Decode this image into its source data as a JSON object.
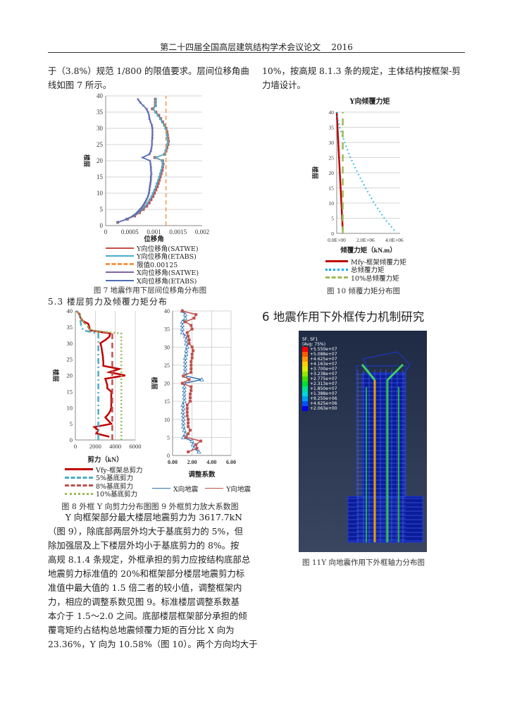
{
  "header": {
    "title": "第二十四届全国高层建筑结构学术会议论文",
    "year": "2016"
  },
  "left_text_top": [
    "于（3.8%）规范 1/800 的限值要求。层间位移角曲",
    "线如图 7 所示。"
  ],
  "right_text_top": [
    "10%，按高规 8.1.3 条的规定，主体结构按框架-剪",
    "力墙设计。"
  ],
  "section_5_3": "5.3 楼层剪力及倾覆力矩分布",
  "section_6": "6 地震作用下外框传力机制研究",
  "fig7_caption": "图 7 地震作用下层间位移角分布图",
  "fig8_9_caption": "图 8 外框 Y 向剪力分布图图 9 外框剪力放大系数图",
  "fig10_caption": "图 10 倾覆力矩分布图",
  "fig11_caption": "图 11Y 向地震作用下外框轴力分布图",
  "body_text": [
    "Y 向框架部分最大楼层地震剪力为 3617.7kN",
    "（图 9），除底部两层外均大于基底剪力的 5%，但",
    "除加强层及上下楼层外均小于基底剪力的 8%。按",
    "高规 8.1.4 条规定，外框承担的剪力应按结构底部总",
    "地震剪力标准值的 20%和框架部分楼层地震剪力标",
    "准值中最大值的 1.5 倍二者的较小值，调整框架内",
    "力，相应的调整系数见图 9。标准楼层调整系数基",
    "本介于 1.5～2.0 之间。底部楼层框架部分承担的倾",
    "覆弯矩约占结构总地震倾覆力矩的百分比 X 向为",
    "23.36%，Y 向为 10.58%（图 10）。两个方向均大于"
  ],
  "fig11": {
    "title": "SF, SF1",
    "subtitle": "(Avg: 75%)",
    "legend": [
      "+5.550e+07",
      "+5.088e+07",
      "+4.625e+07",
      "+4.163e+07",
      "+3.700e+07",
      "+3.238e+07",
      "+2.775e+07",
      "+2.313e+07",
      "+1.850e+07",
      "+1.388e+07",
      "+9.250e+06",
      "+4.625e+06",
      "+2.063e+00"
    ],
    "colors": [
      "#ff0000",
      "#ff5a00",
      "#ff9a00",
      "#ffd000",
      "#d8f000",
      "#90e800",
      "#40e000",
      "#00e030",
      "#00e090",
      "#00d8d8",
      "#00a0f0",
      "#0050ff",
      "#0000e0"
    ]
  },
  "chart_data": [
    {
      "id": "fig7",
      "type": "line",
      "xlabel": "位移角",
      "ylabel": "楼层",
      "xlim": [
        0,
        0.002
      ],
      "ylim": [
        0,
        40
      ],
      "xticks": [
        0,
        0.0005,
        0.001,
        0.0015,
        0.002
      ],
      "xtick_labels": [
        "0",
        "0.0005",
        "0.001",
        "0.0015",
        "0.002"
      ],
      "yticks": [
        0,
        5,
        10,
        15,
        20,
        25,
        30,
        35,
        40
      ],
      "ytick_labels": [
        "0",
        "5",
        "10",
        "15",
        "20",
        "25",
        "30",
        "35",
        "40"
      ],
      "grid": "horizontal",
      "series": [
        {
          "name": "Y向位移角(SATWE)",
          "color": "#c0504d",
          "marker": "square",
          "dash": "",
          "y": [
            1,
            2,
            3,
            4,
            5,
            6,
            7,
            8,
            9,
            10,
            11,
            12,
            13,
            14,
            15,
            16,
            17,
            18,
            19,
            20,
            21,
            22,
            23,
            24,
            25,
            26,
            27,
            28,
            29,
            30,
            31,
            32,
            33,
            34,
            35,
            36,
            37,
            38,
            39
          ],
          "x": [
            0.00025,
            0.00045,
            0.0006,
            0.0007,
            0.00078,
            0.00085,
            0.0009,
            0.00094,
            0.00098,
            0.00101,
            0.00104,
            0.00107,
            0.00109,
            0.00111,
            0.00113,
            0.00115,
            0.00117,
            0.00118,
            0.00119,
            0.00118,
            0.00102,
            0.00122,
            0.00125,
            0.00127,
            0.00129,
            0.0013,
            0.00129,
            0.00128,
            0.00127,
            0.00125,
            0.00122,
            0.00118,
            0.00114,
            0.0011,
            0.00104,
            0.00097,
            0.00103,
            0.00103,
            0.00103
          ]
        },
        {
          "name": "Y向位移角(ETABS)",
          "color": "#4bacc6",
          "marker": "smallsquare",
          "dash": "",
          "y": [
            1,
            2,
            3,
            4,
            5,
            6,
            7,
            8,
            9,
            10,
            11,
            12,
            13,
            14,
            15,
            16,
            17,
            18,
            19,
            20,
            21,
            22,
            23,
            24,
            25,
            26,
            27,
            28,
            29,
            30,
            31,
            32,
            33,
            34,
            35,
            36,
            37,
            38,
            39
          ],
          "x": [
            0.00025,
            0.00044,
            0.00058,
            0.00068,
            0.00075,
            0.00082,
            0.00087,
            0.00091,
            0.00095,
            0.00098,
            0.00101,
            0.00104,
            0.00106,
            0.00109,
            0.00111,
            0.00113,
            0.00115,
            0.00117,
            0.00118,
            0.00118,
            0.00104,
            0.00121,
            0.00124,
            0.00126,
            0.00128,
            0.00129,
            0.00128,
            0.00127,
            0.00126,
            0.00124,
            0.00121,
            0.00117,
            0.00113,
            0.00108,
            0.00103,
            0.00099,
            0.00104,
            0.00104,
            0.00104
          ]
        },
        {
          "name": "限值0.00125",
          "color": "#f79646",
          "marker": "",
          "dash": "6,4",
          "y": [
            0,
            40
          ],
          "x": [
            0.00125,
            0.00125
          ]
        },
        {
          "name": "X向位移角(SATWE)",
          "color": "#8064a2",
          "marker": "cross",
          "dash": "",
          "y": [
            1,
            2,
            3,
            4,
            5,
            6,
            7,
            8,
            9,
            10,
            11,
            12,
            13,
            14,
            15,
            16,
            17,
            18,
            19,
            20,
            21,
            22,
            23,
            24,
            25,
            26,
            27,
            28,
            29,
            30,
            31,
            32,
            33,
            34,
            35,
            36,
            37,
            38,
            39
          ],
          "x": [
            0.00025,
            0.00043,
            0.00057,
            0.00066,
            0.00073,
            0.00078,
            0.00082,
            0.00085,
            0.00088,
            0.0009,
            0.00091,
            0.00092,
            0.00093,
            0.00094,
            0.00094,
            0.00095,
            0.00094,
            0.00094,
            0.00093,
            0.00092,
            0.00077,
            0.00091,
            0.00094,
            0.00095,
            0.00096,
            0.00096,
            0.00097,
            0.00097,
            0.00097,
            0.00097,
            0.00096,
            0.00093,
            0.00091,
            0.0009,
            0.00088,
            0.00085,
            0.00078,
            0.00072,
            0.00067
          ]
        },
        {
          "name": "X向位移角(ETABS)",
          "color": "#4f6fb5",
          "marker": "",
          "dash": "",
          "y": [
            1,
            2,
            3,
            4,
            5,
            6,
            7,
            8,
            9,
            10,
            11,
            12,
            13,
            14,
            15,
            16,
            17,
            18,
            19,
            20,
            21,
            22,
            23,
            24,
            25,
            26,
            27,
            28,
            29,
            30,
            31,
            32,
            33,
            34,
            35,
            36,
            37,
            38,
            39
          ],
          "x": [
            0.00025,
            0.00043,
            0.00056,
            0.00064,
            0.0007,
            0.00076,
            0.0008,
            0.00084,
            0.00087,
            0.00089,
            0.0009,
            0.00091,
            0.00092,
            0.00093,
            0.00093,
            0.00094,
            0.00094,
            0.00093,
            0.00093,
            0.00092,
            0.00076,
            0.0009,
            0.00093,
            0.00095,
            0.00096,
            0.00096,
            0.00096,
            0.00097,
            0.00097,
            0.00096,
            0.00095,
            0.00093,
            0.0009,
            0.0009,
            0.00087,
            0.00084,
            0.00078,
            0.00071,
            0.00066
          ]
        }
      ]
    },
    {
      "id": "fig8",
      "type": "line",
      "xlabel": "剪力（kN）",
      "ylabel": "楼层",
      "xlim": [
        0,
        6000
      ],
      "ylim": [
        0,
        40
      ],
      "xticks": [
        0,
        2000,
        4000,
        6000
      ],
      "xtick_labels": [
        "0",
        "2000",
        "4000",
        "6000"
      ],
      "yticks": [
        0,
        5,
        10,
        15,
        20,
        25,
        30,
        35,
        40
      ],
      "ytick_labels": [
        "0",
        "5",
        "10",
        "15",
        "20",
        "25",
        "30",
        "35",
        "40"
      ],
      "grid": "vertical",
      "series": [
        {
          "name": "Vfy-框架总剪力",
          "color": "#c00000",
          "marker": "",
          "dash": "",
          "width": 2.5,
          "y": [
            1,
            2,
            3,
            4,
            5,
            6,
            7,
            8,
            9,
            10,
            12,
            14,
            15,
            16,
            17,
            18,
            19,
            20,
            21,
            22,
            23,
            24,
            26,
            28,
            29,
            30,
            31,
            32,
            33,
            34,
            35,
            36,
            37,
            38,
            39,
            40
          ],
          "x": [
            3400,
            2100,
            2300,
            1900,
            3600,
            3300,
            3000,
            3300,
            3500,
            3600,
            3600,
            3600,
            3600,
            3200,
            3200,
            3100,
            3000,
            5000,
            3400,
            4400,
            2800,
            2800,
            2750,
            2650,
            2600,
            2500,
            3000,
            3400,
            3500,
            1500,
            1400,
            1300,
            700,
            500,
            400,
            100
          ]
        },
        {
          "name": "5%基底剪力",
          "color": "#4bacc6",
          "marker": "",
          "dash": "8,4,2,4",
          "width": 2.5,
          "y": [
            0,
            33,
            34,
            35,
            37,
            39,
            40
          ],
          "x": [
            2300,
            2300,
            800,
            600,
            500,
            400,
            100
          ]
        },
        {
          "name": "8%基底剪力",
          "color": "#c0504d",
          "marker": "",
          "dash": "8,5",
          "width": 2.5,
          "y": [
            0,
            33,
            34,
            35,
            37,
            39,
            40
          ],
          "x": [
            3700,
            3700,
            1500,
            1300,
            700,
            450,
            100
          ]
        },
        {
          "name": "10%基底剪力",
          "color": "#9bbb59",
          "marker": "",
          "dash": "2,3",
          "width": 2.5,
          "y": [
            0,
            33,
            34,
            35,
            37,
            39,
            40
          ],
          "x": [
            4600,
            4600,
            1600,
            1300,
            700,
            450,
            100
          ]
        }
      ]
    },
    {
      "id": "fig9",
      "type": "line",
      "xlabel": "调整系数",
      "ylabel": "楼层",
      "xlim": [
        0,
        6
      ],
      "ylim": [
        0,
        40
      ],
      "xticks": [
        0,
        2,
        4,
        6
      ],
      "xtick_labels": [
        "0.00",
        "2.00",
        "4.00",
        "6.00"
      ],
      "yticks": [
        0,
        5,
        10,
        15,
        20,
        25,
        30,
        35,
        40
      ],
      "ytick_labels": [
        "0",
        "5",
        "10",
        "15",
        "20",
        "25",
        "30",
        "35",
        "40"
      ],
      "grid": "both",
      "series": [
        {
          "name": "X向地震",
          "color": "#2e75b6",
          "marker": "triangle",
          "dash": "",
          "y": [
            1,
            2,
            3,
            4,
            5,
            6,
            7,
            8,
            9,
            10,
            11,
            12,
            13,
            14,
            15,
            16,
            17,
            18,
            19,
            20,
            21,
            22,
            23,
            24,
            25,
            26,
            27,
            28,
            29,
            30,
            31,
            32,
            33,
            34,
            35,
            36,
            37,
            38,
            39,
            40
          ],
          "x": [
            2.7,
            2.2,
            2.1,
            2.0,
            1.1,
            1.3,
            1.2,
            1.1,
            1.1,
            1.1,
            1.1,
            1.05,
            1.1,
            1.05,
            1.2,
            1.2,
            1.2,
            1.2,
            1.2,
            1.2,
            3.0,
            1.3,
            1.3,
            1.3,
            1.3,
            1.3,
            1.3,
            1.4,
            1.4,
            1.5,
            1.4,
            1.4,
            1.3,
            1.0,
            1.0,
            1.0,
            1.0,
            1.3,
            1.3,
            1.0
          ]
        },
        {
          "name": "Y向地震",
          "color": "#c0504d",
          "marker": "square",
          "dash": "",
          "y": [
            1,
            2,
            3,
            4,
            5,
            6,
            7,
            8,
            9,
            10,
            11,
            12,
            13,
            14,
            15,
            16,
            17,
            18,
            19,
            20,
            21,
            22,
            23,
            24,
            25,
            26,
            27,
            28,
            29,
            30,
            31,
            32,
            33,
            34,
            35,
            36,
            37,
            38,
            39,
            40
          ],
          "x": [
            1.6,
            2.5,
            2.4,
            2.9,
            1.4,
            1.6,
            1.8,
            1.6,
            1.6,
            1.6,
            1.5,
            1.5,
            1.5,
            1.5,
            1.8,
            1.8,
            1.8,
            1.9,
            1.9,
            1.0,
            1.7,
            1.1,
            1.9,
            1.9,
            1.9,
            1.9,
            2.0,
            2.0,
            2.1,
            2.0,
            1.7,
            1.7,
            1.6,
            1.5,
            2.0,
            1.9,
            1.3,
            2.2,
            2.4,
            1.0
          ]
        }
      ]
    },
    {
      "id": "fig10",
      "type": "line",
      "title": "Y向倾覆力矩",
      "xlabel": "倾覆力矩（kN.m）",
      "ylabel": "楼层",
      "xlim": [
        0,
        4400000
      ],
      "ylim": [
        0,
        40
      ],
      "xticks": [
        0,
        2000000,
        4000000
      ],
      "xtick_labels": [
        "0.0E+00",
        "2.0E+06",
        "4.0E+06"
      ],
      "yticks": [
        0,
        5,
        10,
        15,
        20,
        25,
        30,
        35,
        40
      ],
      "ytick_labels": [
        "0",
        "5",
        "10",
        "15",
        "20",
        "25",
        "30",
        "35",
        "40"
      ],
      "grid": "horizontal",
      "series": [
        {
          "name": "Mfy-框架倾覆力矩",
          "color": "#c00000",
          "marker": "",
          "dash": "",
          "width": 2.5,
          "y": [
            1,
            40
          ],
          "x": [
            420000,
            0
          ]
        },
        {
          "name": "总倾覆力矩",
          "color": "#00b0f0",
          "marker": "",
          "dash": "1.5,4",
          "width": 2,
          "y": [
            1,
            5,
            10,
            15,
            20,
            25,
            30,
            35,
            38,
            40
          ],
          "x": [
            4000000,
            3300000,
            2600000,
            2000000,
            1450000,
            950000,
            550000,
            200000,
            60000,
            0
          ]
        },
        {
          "name": "10%总倾覆力矩",
          "color": "#9bbb59",
          "marker": "",
          "dash": "10,7",
          "width": 2.5,
          "y": [
            0,
            40
          ],
          "x": [
            420000,
            420000
          ]
        }
      ]
    }
  ]
}
